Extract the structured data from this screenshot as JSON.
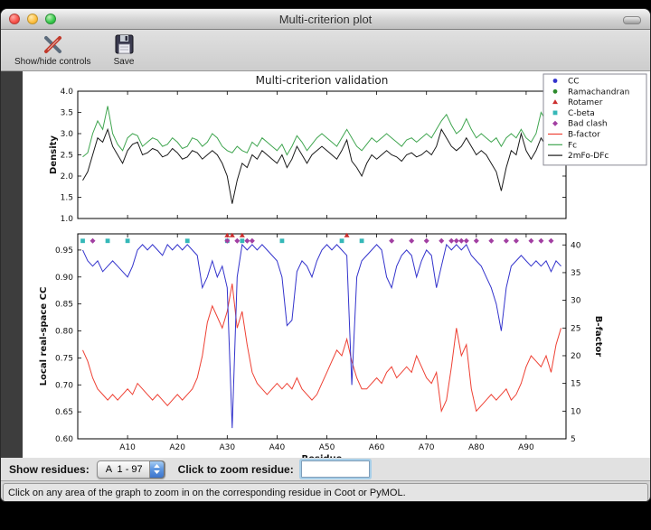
{
  "window": {
    "title": "Multi-criterion plot"
  },
  "toolbar": {
    "buttons": [
      {
        "label": "Show/hide controls",
        "icon": "tools-icon"
      },
      {
        "label": "Save",
        "icon": "save-icon"
      }
    ]
  },
  "controls": {
    "show_residues_label": "Show residues:",
    "residue_range_value": "A  1 - 97",
    "zoom_label": "Click to zoom residue:",
    "zoom_value": ""
  },
  "status_bar": {
    "text": "Click on any area of the graph to zoom in on the corresponding residue in Coot or PyMOL."
  },
  "chart_data": {
    "type": "line",
    "title": "Multi-criterion validation",
    "xlabel": "Residue",
    "xlim": [
      0,
      98
    ],
    "x_tick_positions": [
      10,
      20,
      30,
      40,
      50,
      60,
      70,
      80,
      90
    ],
    "x_tick_labels": [
      "A10",
      "A20",
      "A30",
      "A40",
      "A50",
      "A60",
      "A70",
      "A80",
      "A90"
    ],
    "top": {
      "ylabel": "Density",
      "ylim": [
        1.0,
        4.0
      ],
      "yticks": [
        1.0,
        1.5,
        2.0,
        2.5,
        3.0,
        3.5,
        4.0
      ],
      "ytick_labels": [
        "1.0",
        "1.5",
        "2.0",
        "2.5",
        "3.0",
        "3.5",
        "4.0"
      ],
      "series": [
        {
          "name": "Fc",
          "color": "#3fa54f",
          "values": [
            2.45,
            2.55,
            3.0,
            3.3,
            3.1,
            3.65,
            3.0,
            2.75,
            2.6,
            2.9,
            3.0,
            2.95,
            2.7,
            2.8,
            2.9,
            2.85,
            2.7,
            2.75,
            2.9,
            2.8,
            2.65,
            2.7,
            2.9,
            2.85,
            2.7,
            2.8,
            3.0,
            2.9,
            2.7,
            2.6,
            2.55,
            2.7,
            2.6,
            2.55,
            2.8,
            2.7,
            2.9,
            2.8,
            2.7,
            2.6,
            2.75,
            2.5,
            2.7,
            2.95,
            2.8,
            2.6,
            2.75,
            2.9,
            3.0,
            2.9,
            2.8,
            2.7,
            2.9,
            3.1,
            2.9,
            2.7,
            2.6,
            2.75,
            2.9,
            2.8,
            2.9,
            3.0,
            2.9,
            2.8,
            2.7,
            2.85,
            2.9,
            2.8,
            2.9,
            3.0,
            2.9,
            3.1,
            3.3,
            3.45,
            3.2,
            3.0,
            3.1,
            3.35,
            3.1,
            2.9,
            3.0,
            2.9,
            2.8,
            2.9,
            2.7,
            2.9,
            3.0,
            2.9,
            3.1,
            2.9,
            2.8,
            3.0,
            3.5,
            3.3,
            2.9,
            3.0,
            2.9
          ]
        },
        {
          "name": "2mFo-DFc",
          "color": "#1a1a1a",
          "values": [
            1.9,
            2.1,
            2.5,
            2.9,
            2.8,
            3.1,
            2.7,
            2.5,
            2.3,
            2.6,
            2.75,
            2.8,
            2.5,
            2.55,
            2.65,
            2.6,
            2.45,
            2.5,
            2.65,
            2.55,
            2.4,
            2.45,
            2.6,
            2.55,
            2.4,
            2.5,
            2.6,
            2.5,
            2.3,
            2.0,
            1.35,
            1.9,
            2.3,
            2.2,
            2.5,
            2.4,
            2.6,
            2.5,
            2.4,
            2.3,
            2.5,
            2.2,
            2.4,
            2.7,
            2.5,
            2.3,
            2.5,
            2.6,
            2.7,
            2.6,
            2.5,
            2.4,
            2.6,
            2.85,
            2.35,
            2.2,
            2.0,
            2.3,
            2.5,
            2.4,
            2.5,
            2.6,
            2.5,
            2.45,
            2.35,
            2.5,
            2.55,
            2.45,
            2.5,
            2.6,
            2.5,
            2.7,
            3.1,
            2.9,
            2.7,
            2.6,
            2.7,
            2.9,
            2.7,
            2.5,
            2.6,
            2.5,
            2.3,
            2.1,
            1.65,
            2.2,
            2.6,
            2.5,
            3.0,
            2.6,
            2.4,
            2.6,
            2.9,
            2.7,
            2.4,
            2.6,
            2.5
          ]
        }
      ]
    },
    "bottom": {
      "ylabel_left": "Local real-space CC",
      "ylim_left": [
        0.6,
        0.98
      ],
      "yticks_left": [
        0.6,
        0.65,
        0.7,
        0.75,
        0.8,
        0.85,
        0.9,
        0.95
      ],
      "ytick_labels_left": [
        "0.60",
        "0.65",
        "0.70",
        "0.75",
        "0.80",
        "0.85",
        "0.90",
        "0.95"
      ],
      "ylabel_right": "B-factor",
      "ylim_right": [
        5,
        42
      ],
      "yticks_right": [
        5,
        10,
        15,
        20,
        25,
        30,
        35,
        40
      ],
      "ytick_labels_right": [
        "5",
        "10",
        "15",
        "20",
        "25",
        "30",
        "35",
        "40"
      ],
      "series_left": [
        {
          "name": "CC",
          "color": "#3333cc",
          "values": [
            0.95,
            0.93,
            0.92,
            0.93,
            0.91,
            0.92,
            0.93,
            0.92,
            0.91,
            0.9,
            0.92,
            0.95,
            0.96,
            0.95,
            0.96,
            0.95,
            0.94,
            0.96,
            0.95,
            0.96,
            0.95,
            0.96,
            0.95,
            0.94,
            0.88,
            0.9,
            0.93,
            0.9,
            0.92,
            0.88,
            0.62,
            0.9,
            0.96,
            0.95,
            0.96,
            0.95,
            0.96,
            0.95,
            0.94,
            0.93,
            0.9,
            0.81,
            0.82,
            0.91,
            0.93,
            0.92,
            0.9,
            0.93,
            0.95,
            0.96,
            0.95,
            0.96,
            0.95,
            0.94,
            0.7,
            0.9,
            0.93,
            0.94,
            0.95,
            0.96,
            0.95,
            0.9,
            0.88,
            0.92,
            0.94,
            0.95,
            0.94,
            0.9,
            0.93,
            0.95,
            0.94,
            0.88,
            0.92,
            0.96,
            0.95,
            0.96,
            0.95,
            0.96,
            0.94,
            0.93,
            0.92,
            0.9,
            0.88,
            0.85,
            0.8,
            0.88,
            0.92,
            0.93,
            0.94,
            0.93,
            0.92,
            0.93,
            0.92,
            0.93,
            0.91,
            0.93,
            0.92
          ]
        }
      ],
      "series_right": [
        {
          "name": "B-factor",
          "color": "#ee4033",
          "values": [
            21,
            19,
            16,
            14,
            13,
            12,
            13,
            12,
            13,
            14,
            13,
            15,
            14,
            13,
            12,
            13,
            12,
            11,
            12,
            13,
            12,
            13,
            14,
            16,
            20,
            26,
            29,
            27,
            25,
            28,
            33,
            25,
            28,
            22,
            17,
            15,
            14,
            13,
            14,
            15,
            14,
            15,
            14,
            16,
            14,
            13,
            12,
            13,
            15,
            17,
            19,
            21,
            20,
            23,
            19,
            16,
            14,
            14,
            15,
            16,
            15,
            17,
            18,
            16,
            17,
            18,
            17,
            20,
            18,
            16,
            15,
            17,
            10,
            12,
            18,
            25,
            20,
            22,
            14,
            10,
            11,
            12,
            13,
            12,
            13,
            14,
            12,
            13,
            15,
            18,
            20,
            19,
            18,
            20,
            17,
            22,
            25
          ]
        }
      ],
      "markers": [
        {
          "name": "Ramachandran",
          "shape": "circle",
          "color": "#2e8b2e",
          "y": 0.967,
          "residues": []
        },
        {
          "name": "Rotamer",
          "shape": "triangle",
          "color": "#cc2e2e",
          "y": 0.977,
          "residues": [
            30,
            31,
            33,
            54
          ]
        },
        {
          "name": "C-beta",
          "shape": "square",
          "color": "#35b8b8",
          "y": 0.967,
          "residues": [
            1,
            6,
            10,
            22,
            30,
            33,
            41,
            53,
            57
          ]
        },
        {
          "name": "Bad clash",
          "shape": "diamond",
          "color": "#a23fa2",
          "y": 0.967,
          "residues": [
            3,
            30,
            32,
            34,
            35,
            63,
            67,
            70,
            73,
            75,
            76,
            77,
            78,
            80,
            83,
            86,
            88,
            91,
            93,
            95
          ]
        }
      ]
    },
    "legend": [
      {
        "label": "CC",
        "marker": "circle",
        "color": "#3333cc"
      },
      {
        "label": "Ramachandran",
        "marker": "circle",
        "color": "#2e8b2e"
      },
      {
        "label": "Rotamer",
        "marker": "triangle",
        "color": "#cc2e2e"
      },
      {
        "label": "C-beta",
        "marker": "square",
        "color": "#35b8b8"
      },
      {
        "label": "Bad clash",
        "marker": "diamond",
        "color": "#a23fa2"
      },
      {
        "label": "B-factor",
        "marker": "line",
        "color": "#ee4033"
      },
      {
        "label": "Fc",
        "marker": "line",
        "color": "#3fa54f"
      },
      {
        "label": "2mFo-DFc",
        "marker": "line",
        "color": "#1a1a1a"
      }
    ]
  }
}
